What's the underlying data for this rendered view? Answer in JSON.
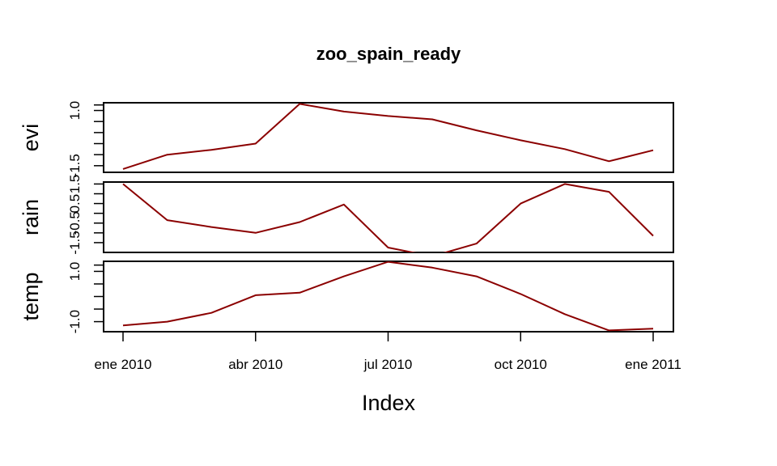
{
  "chart_data": {
    "type": "line",
    "title": "zoo_spain_ready",
    "xlabel": "Index",
    "x": [
      "2010-01",
      "2010-02",
      "2010-03",
      "2010-04",
      "2010-05",
      "2010-06",
      "2010-07",
      "2010-08",
      "2010-09",
      "2010-10",
      "2010-11",
      "2010-12",
      "2011-01"
    ],
    "x_ticks": [
      {
        "label": "ene 2010",
        "x": "2010-01"
      },
      {
        "label": "abr 2010",
        "x": "2010-04"
      },
      {
        "label": "jul 2010",
        "x": "2010-07"
      },
      {
        "label": "oct 2010",
        "x": "2010-10"
      },
      {
        "label": "ene 2011",
        "x": "2011-01"
      }
    ],
    "line_color": "#8b0000",
    "grid": false,
    "panels": [
      {
        "name": "evi",
        "ylim": [
          -1.8,
          1.35
        ],
        "y_ticks": [
          {
            "value": 1.0,
            "label": "1.0"
          },
          {
            "value": -1.5,
            "label": "-1.5"
          }
        ],
        "y_minor": [
          1.25,
          0.5,
          0.0,
          -0.5,
          -1.0
        ],
        "values": [
          -1.65,
          -1.0,
          -0.78,
          -0.5,
          1.3,
          0.95,
          0.75,
          0.6,
          0.1,
          -0.35,
          -0.75,
          -1.3,
          -0.8
        ]
      },
      {
        "name": "rain",
        "ylim": [
          -2.0,
          1.6
        ],
        "y_ticks": [
          {
            "value": 1.5,
            "label": "1.5"
          },
          {
            "value": 0.5,
            "label": "0.5"
          },
          {
            "value": -0.5,
            "label": "-0.5"
          },
          {
            "value": -1.5,
            "label": "-1.5"
          }
        ],
        "y_minor": [
          1.0,
          0.0,
          -1.0
        ],
        "values": [
          1.5,
          -0.35,
          -0.7,
          -1.0,
          -0.45,
          0.45,
          -1.75,
          -2.2,
          -1.55,
          0.5,
          1.5,
          1.1,
          -1.15
        ]
      },
      {
        "name": "temp",
        "ylim": [
          -1.4,
          1.4
        ],
        "y_ticks": [
          {
            "value": 1.0,
            "label": "1.0"
          },
          {
            "value": -1.0,
            "label": "-1.0"
          }
        ],
        "y_minor": [
          1.25,
          0.5,
          0.0,
          -0.5
        ],
        "values": [
          -1.15,
          -1.0,
          -0.65,
          0.05,
          0.15,
          0.8,
          1.38,
          1.15,
          0.8,
          0.1,
          -0.7,
          -1.35,
          -1.28
        ]
      }
    ]
  }
}
